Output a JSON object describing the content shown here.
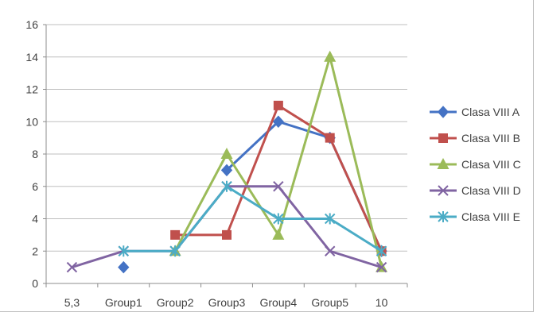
{
  "chart_data": {
    "type": "line",
    "title": "",
    "xlabel": "",
    "ylabel": "",
    "categories": [
      "5,3",
      "Group1",
      "Group2",
      "Group3",
      "Group4",
      "Group5",
      "10"
    ],
    "ylim": [
      0,
      16
    ],
    "yticks": [
      0,
      2,
      4,
      6,
      8,
      10,
      12,
      14,
      16
    ],
    "grid": "horizontal",
    "legend_position": "right",
    "series": [
      {
        "name": "Clasa VIII A",
        "color": "#4472C4",
        "marker": "diamond",
        "values": [
          null,
          1,
          null,
          7,
          10,
          9,
          2
        ]
      },
      {
        "name": "Clasa VIII B",
        "color": "#C0504D",
        "marker": "square",
        "values": [
          null,
          null,
          3,
          3,
          11,
          9,
          2
        ]
      },
      {
        "name": "Clasa VIII C",
        "color": "#9BBB59",
        "marker": "triangle",
        "values": [
          null,
          null,
          2,
          8,
          3,
          14,
          1
        ]
      },
      {
        "name": "Clasa VIII D",
        "color": "#8064A2",
        "marker": "x",
        "values": [
          1,
          2,
          2,
          6,
          6,
          2,
          1
        ]
      },
      {
        "name": "Clasa VIII E",
        "color": "#4BACC6",
        "marker": "star",
        "values": [
          null,
          2,
          2,
          6,
          4,
          4,
          2
        ]
      }
    ]
  }
}
